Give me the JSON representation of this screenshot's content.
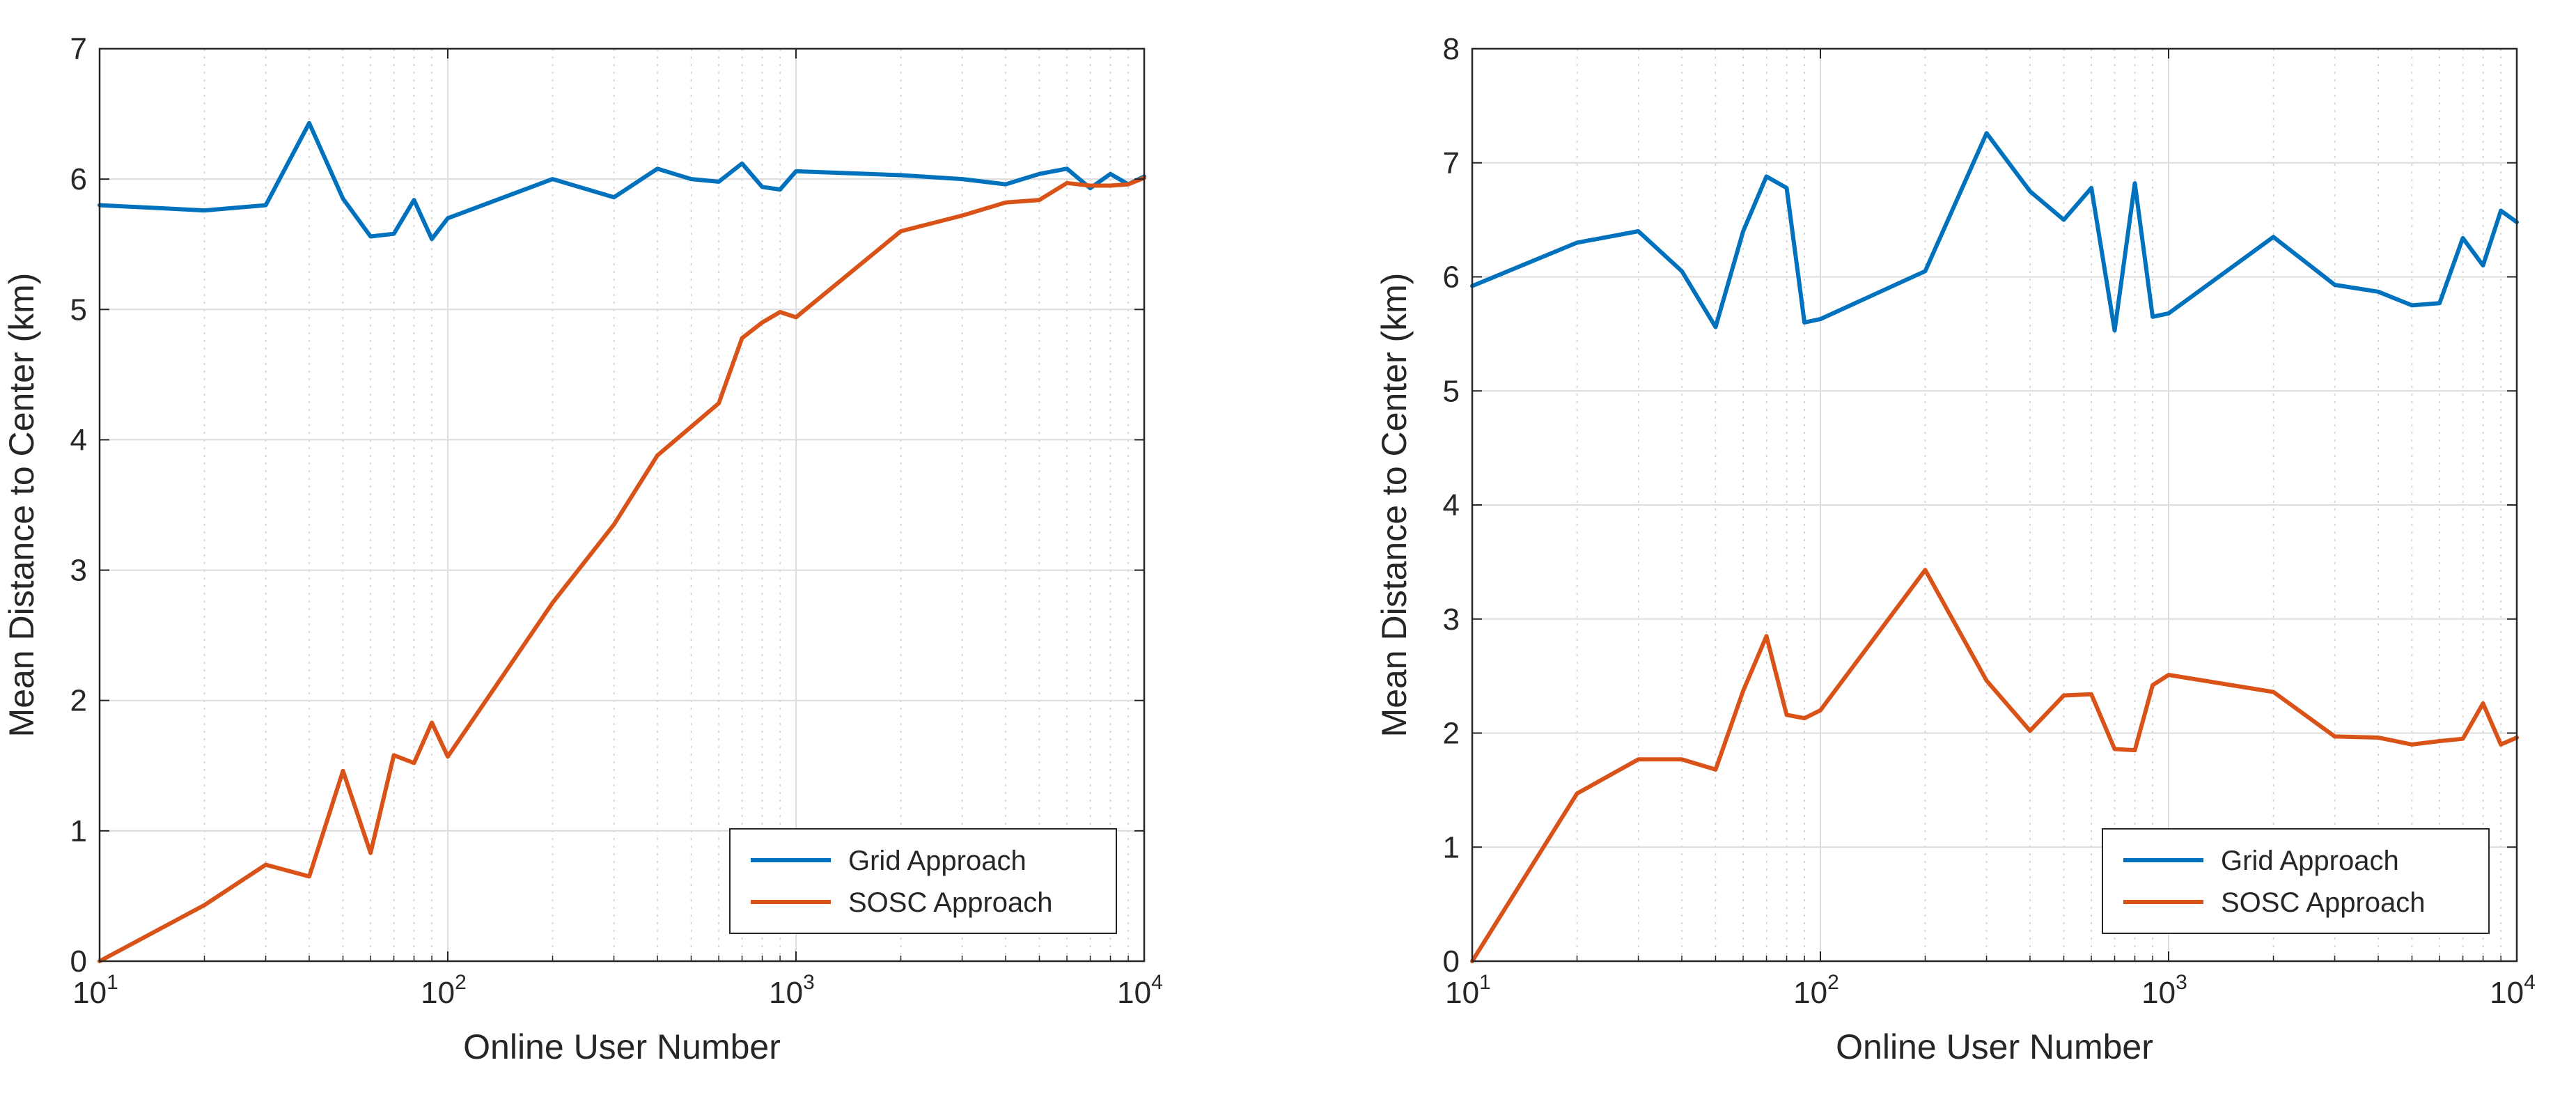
{
  "chart_data": [
    {
      "type": "line",
      "title": "",
      "xlabel": "Online User Number",
      "ylabel": "Mean Distance to Center (km)",
      "xscale": "log",
      "xlim": [
        10,
        10000
      ],
      "ylim": [
        0,
        7
      ],
      "yticks": [
        "0",
        "1",
        "2",
        "3",
        "4",
        "5",
        "6",
        "7"
      ],
      "xticks": [
        {
          "base": "10",
          "exp": "1"
        },
        {
          "base": "10",
          "exp": "2"
        },
        {
          "base": "10",
          "exp": "3"
        },
        {
          "base": "10",
          "exp": "4"
        }
      ],
      "grid": true,
      "legend_position": "bottom-right",
      "x": [
        10,
        20,
        30,
        40,
        50,
        60,
        70,
        80,
        90,
        100,
        200,
        300,
        400,
        500,
        600,
        700,
        800,
        900,
        1000,
        2000,
        3000,
        4000,
        5000,
        6000,
        7000,
        8000,
        9000,
        10000
      ],
      "series": [
        {
          "name": "Grid Approach",
          "color": "#0072bd",
          "values": [
            5.8,
            5.76,
            5.8,
            6.43,
            5.85,
            5.56,
            5.58,
            5.84,
            5.54,
            5.7,
            6.0,
            5.86,
            6.08,
            6.0,
            5.98,
            6.12,
            5.94,
            5.92,
            6.06,
            6.03,
            6.0,
            5.96,
            6.04,
            6.08,
            5.93,
            6.04,
            5.96,
            6.02
          ]
        },
        {
          "name": "SOSC Approach",
          "color": "#d95319",
          "values": [
            0.0,
            0.43,
            0.74,
            0.65,
            1.46,
            0.83,
            1.58,
            1.52,
            1.83,
            1.57,
            2.75,
            3.35,
            3.88,
            4.1,
            4.28,
            4.78,
            4.9,
            4.98,
            4.94,
            5.6,
            5.72,
            5.82,
            5.84,
            5.97,
            5.95,
            5.95,
            5.96,
            6.01
          ]
        }
      ]
    },
    {
      "type": "line",
      "title": "",
      "xlabel": "Online User Number",
      "ylabel": "Mean Distance to Center (km)",
      "xscale": "log",
      "xlim": [
        10,
        10000
      ],
      "ylim": [
        0,
        8
      ],
      "yticks": [
        "0",
        "1",
        "2",
        "3",
        "4",
        "5",
        "6",
        "7",
        "8"
      ],
      "xticks": [
        {
          "base": "10",
          "exp": "1"
        },
        {
          "base": "10",
          "exp": "2"
        },
        {
          "base": "10",
          "exp": "3"
        },
        {
          "base": "10",
          "exp": "4"
        }
      ],
      "grid": true,
      "legend_position": "bottom-right",
      "x": [
        10,
        20,
        30,
        40,
        50,
        60,
        70,
        80,
        90,
        100,
        200,
        300,
        400,
        500,
        600,
        700,
        800,
        900,
        1000,
        2000,
        3000,
        4000,
        5000,
        6000,
        7000,
        8000,
        9000,
        10000
      ],
      "series": [
        {
          "name": "Grid Approach",
          "color": "#0072bd",
          "values": [
            5.92,
            6.3,
            6.4,
            6.05,
            5.56,
            6.4,
            6.88,
            6.78,
            5.6,
            5.63,
            6.05,
            7.26,
            6.75,
            6.5,
            6.78,
            5.53,
            6.82,
            5.65,
            5.68,
            6.35,
            5.93,
            5.87,
            5.75,
            5.77,
            6.34,
            6.1,
            6.58,
            6.48
          ]
        },
        {
          "name": "SOSC Approach",
          "color": "#d95319",
          "values": [
            0.0,
            1.47,
            1.77,
            1.77,
            1.68,
            2.37,
            2.85,
            2.16,
            2.13,
            2.2,
            3.43,
            2.46,
            2.02,
            2.33,
            2.34,
            1.86,
            1.85,
            2.42,
            2.51,
            2.36,
            1.97,
            1.96,
            1.9,
            1.93,
            1.95,
            2.26,
            1.9,
            1.96
          ]
        }
      ]
    }
  ]
}
